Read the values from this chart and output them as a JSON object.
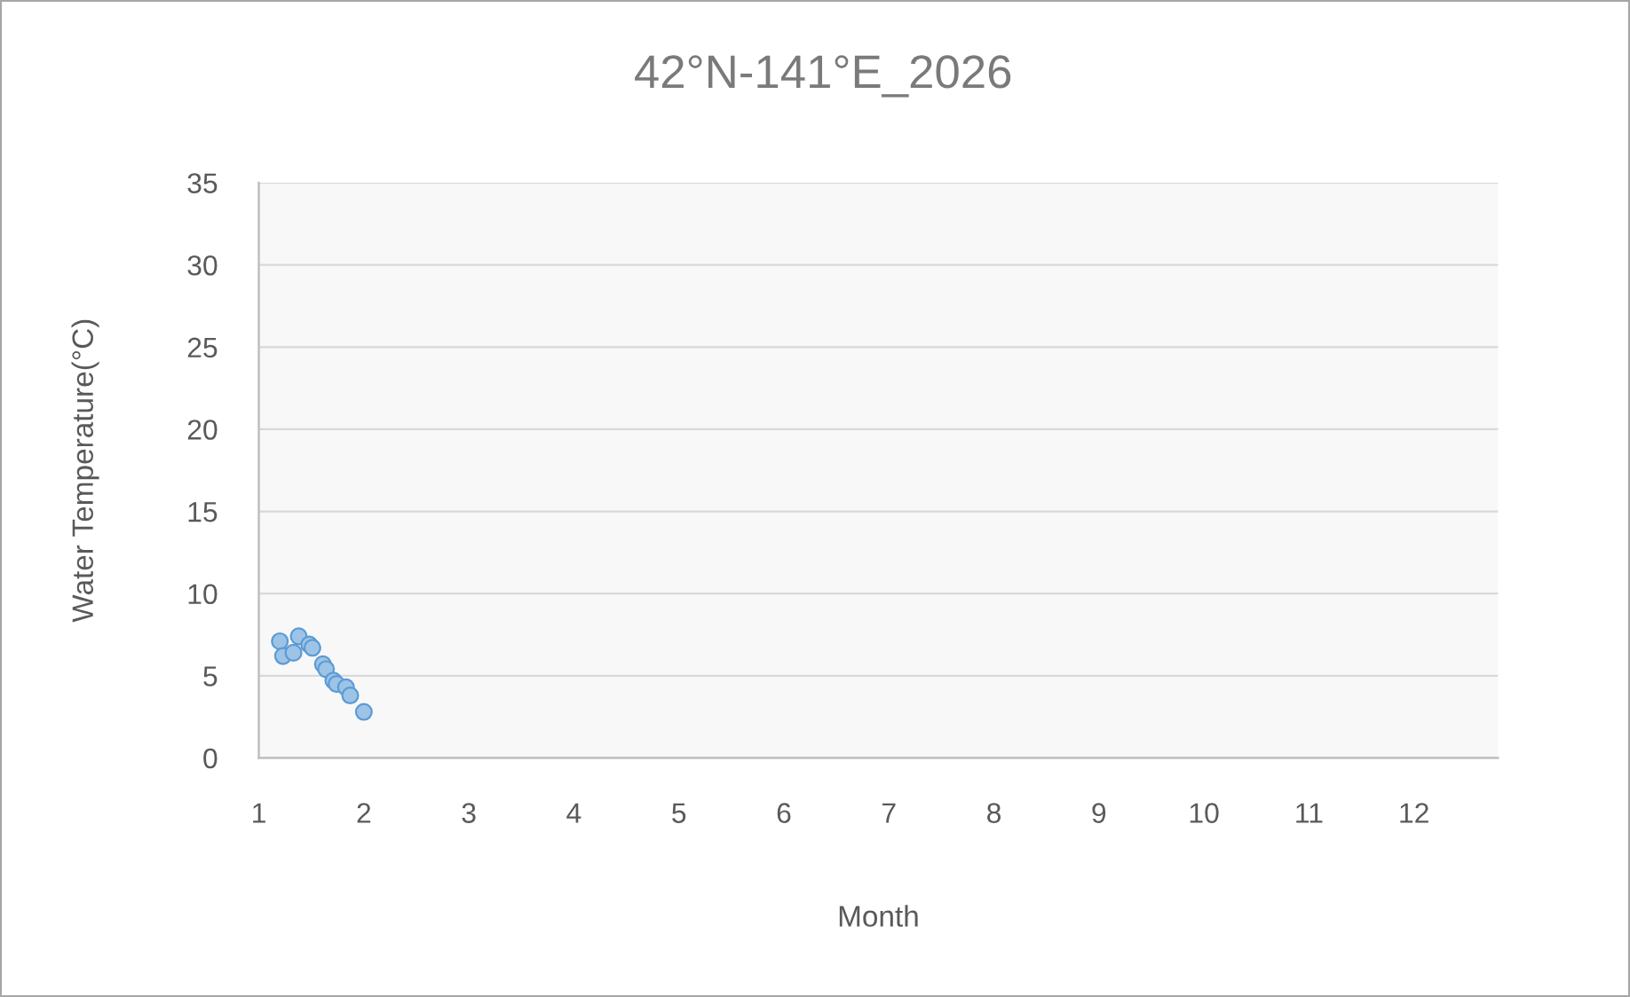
{
  "chart_data": {
    "type": "scatter",
    "title": "42°N-141°E_2026",
    "xlabel": "Month",
    "ylabel": "Water Temperature(°C)",
    "x": [
      1.2,
      1.23,
      1.33,
      1.38,
      1.48,
      1.51,
      1.61,
      1.64,
      1.71,
      1.74,
      1.83,
      1.87,
      2.0
    ],
    "values": [
      7.1,
      6.2,
      6.4,
      7.4,
      6.9,
      6.7,
      5.7,
      5.4,
      4.7,
      4.5,
      4.3,
      3.8,
      2.8
    ],
    "color": "#9dc3e6",
    "marker": "circle",
    "xlim": [
      1,
      12.8
    ],
    "xticks": [
      1,
      2,
      3,
      4,
      5,
      6,
      7,
      8,
      9,
      10,
      11,
      12
    ],
    "ylim": [
      0,
      35
    ],
    "yticks": [
      0,
      5,
      10,
      15,
      20,
      25,
      30,
      35
    ],
    "grid": "y",
    "legend": false
  }
}
